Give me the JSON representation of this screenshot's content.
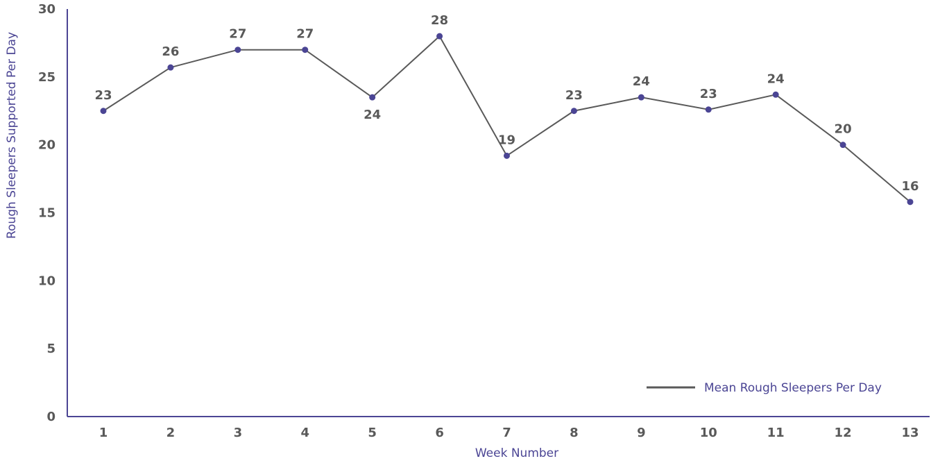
{
  "chart_data": {
    "type": "line",
    "xlabel": "Week Number",
    "ylabel": "Rough Sleepers Supported Per Day",
    "categories": [
      "1",
      "2",
      "3",
      "4",
      "5",
      "6",
      "7",
      "8",
      "9",
      "10",
      "11",
      "12",
      "13"
    ],
    "yticks": [
      "0",
      "5",
      "10",
      "15",
      "20",
      "25",
      "30"
    ],
    "ylim": [
      0,
      30
    ],
    "grid": false,
    "legend_position": "bottom-right",
    "series": [
      {
        "name": "Mean Rough Sleepers Per Day",
        "values": [
          22.5,
          25.7,
          27.0,
          27.0,
          23.5,
          28.0,
          19.2,
          22.5,
          23.5,
          22.6,
          23.7,
          20.0,
          15.8
        ],
        "data_labels": [
          "23",
          "26",
          "27",
          "27",
          "24",
          "28",
          "19",
          "23",
          "24",
          "23",
          "24",
          "20",
          "16"
        ],
        "line_color": "#595959",
        "marker_color": "#4b4594"
      }
    ]
  }
}
